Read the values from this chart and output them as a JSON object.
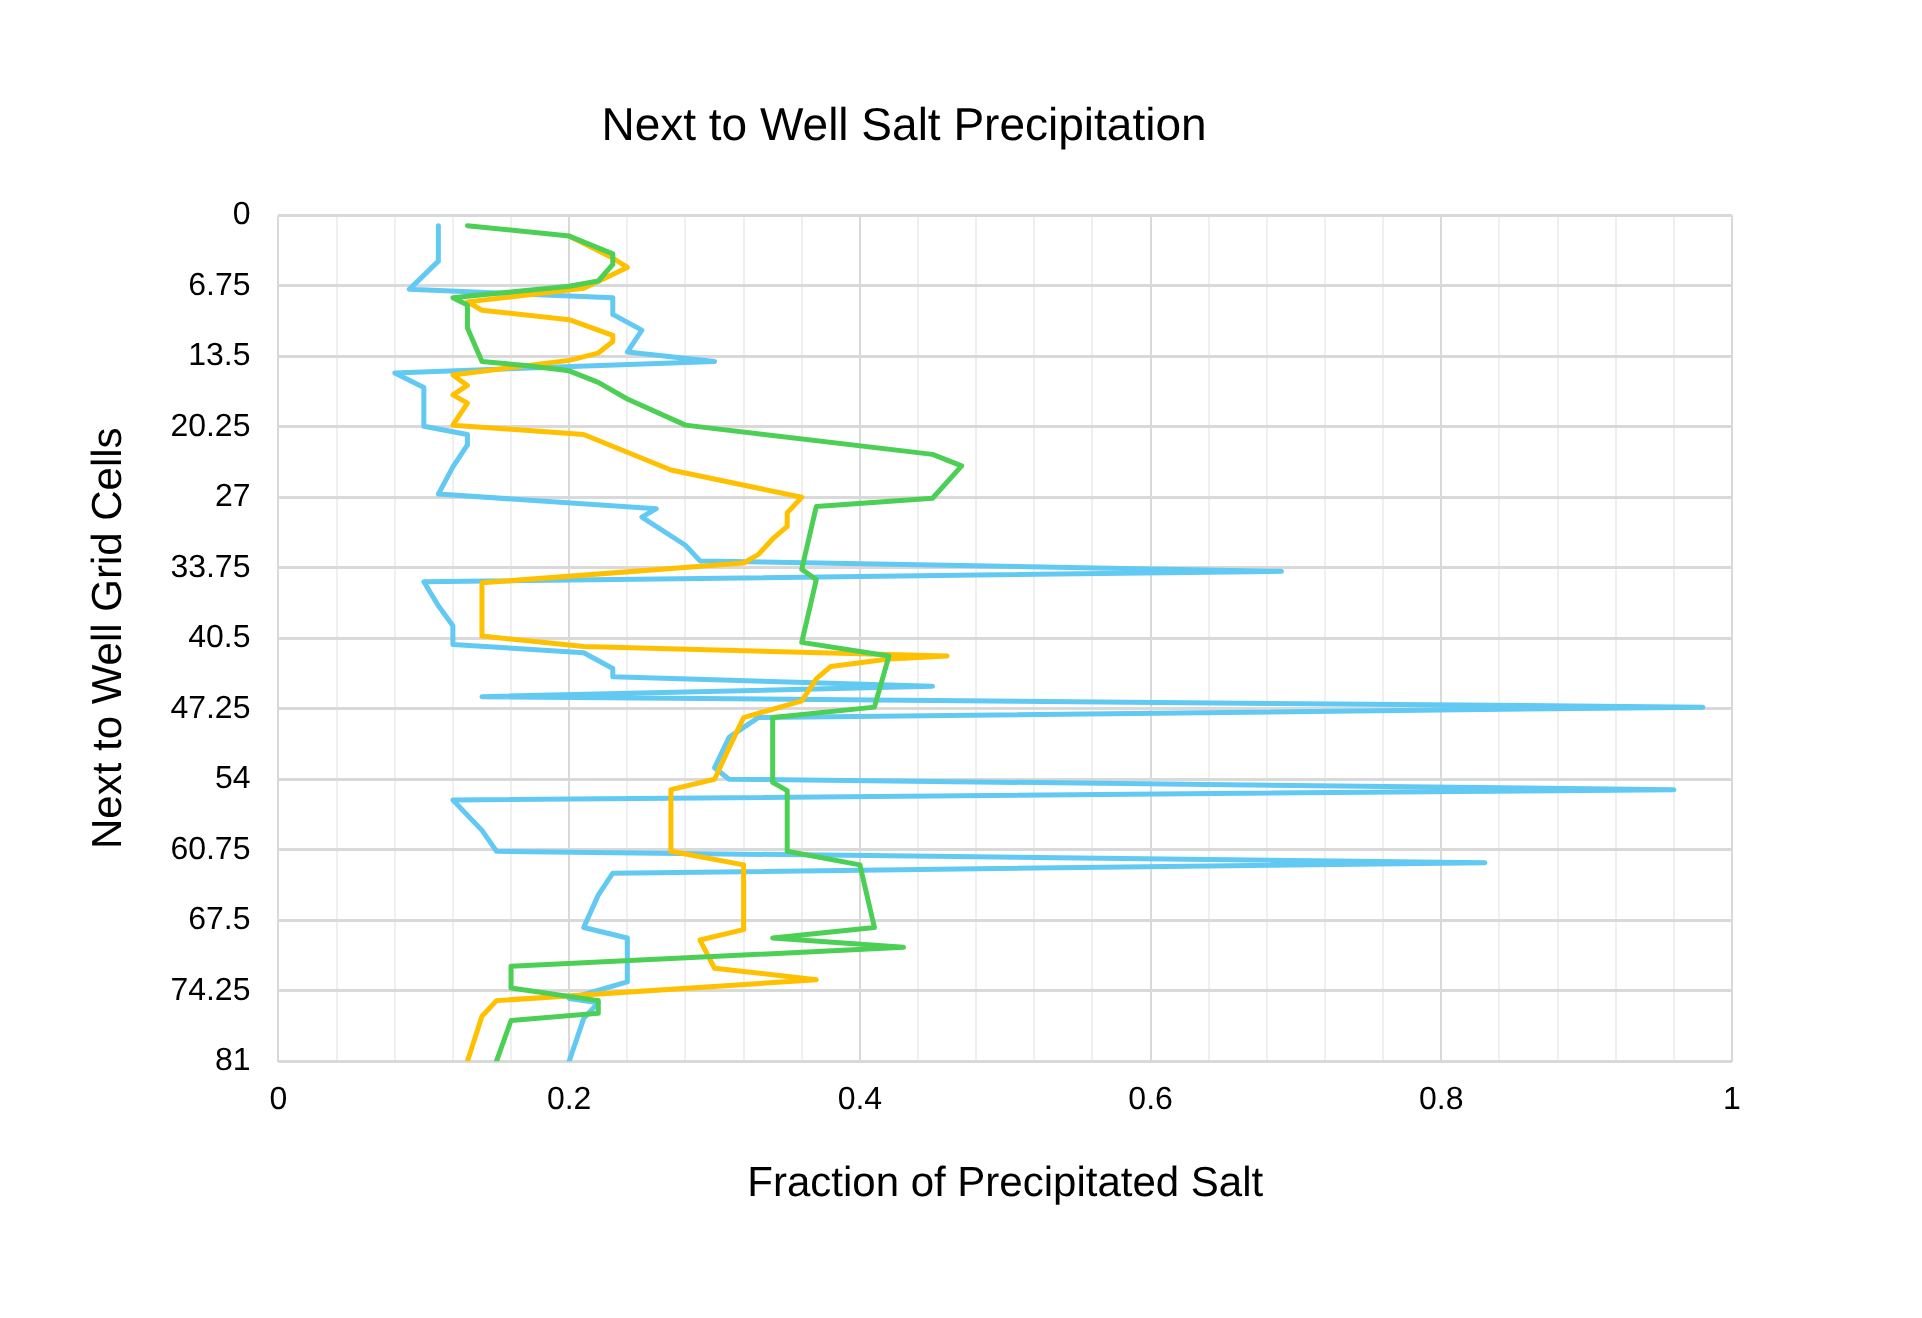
{
  "chart_data": {
    "type": "line",
    "title": "Next to Well Salt Precipitation",
    "xlabel": "Fraction of Precipitated Salt",
    "ylabel": "Next to Well Grid Cells",
    "xlim": [
      0,
      1
    ],
    "xticks": [
      0,
      {
        "value": 0.04,
        "label": null
      },
      {
        "value": 0.08,
        "label": null
      },
      {
        "value": 0.12,
        "label": null
      },
      {
        "value": 0.16,
        "label": null
      },
      0.2,
      {
        "value": 0.24,
        "label": null
      },
      {
        "value": 0.28,
        "label": null
      },
      {
        "value": 0.32,
        "label": null
      },
      {
        "value": 0.36,
        "label": null
      },
      0.4,
      {
        "value": 0.44,
        "label": null
      },
      {
        "value": 0.48,
        "label": null
      },
      {
        "value": 0.52,
        "label": null
      },
      {
        "value": 0.56,
        "label": null
      },
      0.6,
      {
        "value": 0.64,
        "label": null
      },
      {
        "value": 0.68,
        "label": null
      },
      {
        "value": 0.72,
        "label": null
      },
      {
        "value": 0.76,
        "label": null
      },
      0.8,
      {
        "value": 0.84,
        "label": null
      },
      {
        "value": 0.88,
        "label": null
      },
      {
        "value": 0.92,
        "label": null
      },
      {
        "value": 0.96,
        "label": null
      },
      1
    ],
    "ylim": [
      81,
      0
    ],
    "yticks": [
      0,
      6.75,
      13.5,
      20.25,
      27,
      33.75,
      40.5,
      47.25,
      54,
      60.75,
      67.5,
      74.25,
      81
    ],
    "grid": true,
    "legend": false,
    "marker": "none",
    "line_style": "solid",
    "series": [
      {
        "color": "#4ccf55",
        "x": [
          0.13,
          0.2,
          0.23,
          0.23,
          0.22,
          0.2,
          0.12,
          0.13,
          0.13,
          0.14,
          0.17,
          0.2,
          0.22,
          0.24,
          0.28,
          0.45,
          0.47,
          0.45,
          0.37,
          0.36,
          0.37,
          0.36,
          0.42,
          0.41,
          0.34,
          0.34,
          0.35,
          0.35,
          0.4,
          0.41,
          0.34,
          0.43,
          0.16,
          0.16,
          0.22,
          0.22,
          0.16,
          0.15
        ],
        "values": [
          1,
          2,
          3.7,
          4.7,
          6.3,
          6.8,
          7.9,
          8.6,
          10.8,
          14,
          14.4,
          14.9,
          16,
          17.6,
          20.1,
          22.9,
          24,
          27.1,
          27.9,
          33.9,
          34.9,
          40.9,
          42.2,
          47.1,
          48.1,
          54.3,
          55.1,
          60.9,
          62.2,
          68.2,
          69.2,
          70.1,
          71.9,
          74,
          75.2,
          76.4,
          77.1,
          81
        ]
      },
      {
        "color": "#ffc000",
        "x": [
          0.2,
          0.23,
          0.24,
          0.21,
          0.13,
          0.14,
          0.2,
          0.23,
          0.23,
          0.22,
          0.2,
          0.12,
          0.13,
          0.12,
          0.13,
          0.12,
          0.21,
          0.24,
          0.27,
          0.36,
          0.35,
          0.35,
          0.34,
          0.33,
          0.32,
          0.14,
          0.14,
          0.21,
          0.46,
          0.42,
          0.38,
          0.37,
          0.36,
          0.32,
          0.31,
          0.3,
          0.27,
          0.27,
          0.32,
          0.32,
          0.29,
          0.3,
          0.37,
          0.15,
          0.14,
          0.13
        ],
        "values": [
          2,
          4.1,
          5,
          7,
          8.3,
          9.1,
          10,
          11.5,
          12.1,
          13.2,
          13.9,
          15.3,
          16.3,
          17.2,
          18,
          20.1,
          21,
          22.7,
          24.4,
          27,
          28.5,
          29.8,
          31,
          32.5,
          33.3,
          35.2,
          40.3,
          41.3,
          42.2,
          42.5,
          43.2,
          44.4,
          46.5,
          48.1,
          51,
          54,
          55,
          60.9,
          62.2,
          68.4,
          69.4,
          72.1,
          73.2,
          75.2,
          76.7,
          81
        ]
      },
      {
        "color": "#61c9f2",
        "x": [
          0.11,
          0.11,
          0.09,
          0.23,
          0.23,
          0.25,
          0.24,
          0.3,
          0.08,
          0.1,
          0.1,
          0.13,
          0.13,
          0.12,
          0.11,
          0.26,
          0.25,
          0.28,
          0.29,
          0.69,
          0.1,
          0.11,
          0.12,
          0.12,
          0.21,
          0.23,
          0.23,
          0.45,
          0.14,
          0.98,
          0.33,
          0.31,
          0.3,
          0.31,
          0.96,
          0.12,
          0.14,
          0.15,
          0.83,
          0.23,
          0.22,
          0.21,
          0.24,
          0.24,
          0.2,
          0.22,
          0.21,
          0.2
        ],
        "values": [
          1,
          4.4,
          7.1,
          7.9,
          9.5,
          11,
          13.1,
          14,
          15.1,
          16.5,
          20.2,
          21,
          22,
          24.1,
          26.7,
          28.1,
          28.9,
          31.6,
          33.1,
          34.1,
          35.1,
          37.4,
          39.3,
          41.1,
          41.9,
          43.4,
          44.2,
          45.1,
          46.1,
          47.1,
          48.1,
          50,
          52.9,
          54,
          55,
          56,
          58.9,
          60.9,
          62,
          63,
          65.1,
          68.2,
          69.2,
          73.4,
          75,
          75.4,
          76.9,
          81
        ]
      }
    ]
  }
}
